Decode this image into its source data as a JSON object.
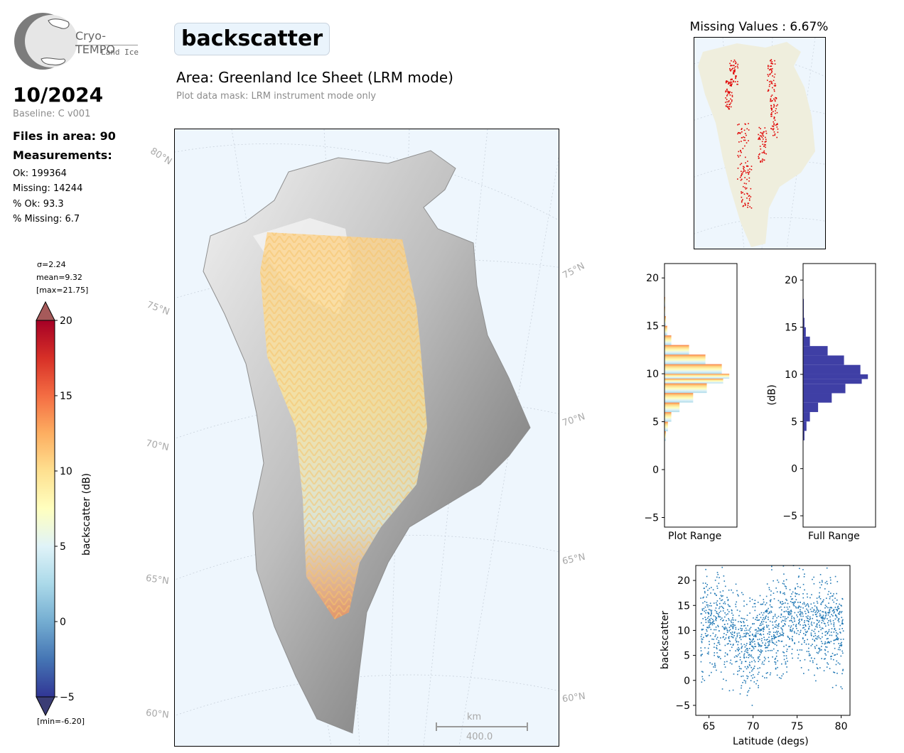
{
  "logo": {
    "name": "Cryo-TEMPO",
    "subtitle": "Land Ice"
  },
  "header": {
    "date": "10/2024",
    "baseline": "Baseline: C v001",
    "files_in_area": "Files in area: 90",
    "measurements_title": "Measurements:",
    "ok": "Ok: 199364",
    "missing": "Missing: 14244",
    "pct_ok": "% Ok: 93.3",
    "pct_missing": "% Missing: 6.7",
    "parameter": "backscatter",
    "area": "Area: Greenland Ice Sheet (LRM mode)",
    "mask": "Plot data mask: LRM instrument mode only"
  },
  "colorbar": {
    "label": "backscatter (dB)",
    "stats": {
      "sigma": "σ=2.24",
      "mean": "mean=9.32",
      "max": "[max=21.75]",
      "min": "[min=-6.20]"
    },
    "range": [
      -5,
      20
    ],
    "ticks": [
      "20",
      "15",
      "10",
      "5",
      "0",
      "−5"
    ],
    "colors": [
      "#313695",
      "#4575b4",
      "#74add1",
      "#abd9e9",
      "#e0f3f8",
      "#ffffbf",
      "#fee090",
      "#fdae61",
      "#f46d43",
      "#d73027",
      "#a50026"
    ]
  },
  "map": {
    "lat_labels_left": [
      "80°N",
      "75°N",
      "70°N",
      "65°N",
      "60°N"
    ],
    "lat_labels_right": [
      "75°N",
      "70°N",
      "65°N",
      "60°N"
    ],
    "scalebar_unit": "km",
    "scalebar_value": "400.0",
    "ocean_color": "#eef6fd"
  },
  "missing_map": {
    "title": "Missing Values : 6.67%",
    "land_color": "#efeedd",
    "point_color": "#e00000"
  },
  "chart_data": [
    {
      "type": "histogram",
      "xlabel": "Plot Range",
      "ylim": [
        -6,
        21.5
      ],
      "yticks": [
        "20",
        "15",
        "10",
        "5",
        "0",
        "−5"
      ],
      "bins": [
        {
          "y": 3,
          "count": 0.02
        },
        {
          "y": 4,
          "count": 0.05
        },
        {
          "y": 5,
          "count": 0.1
        },
        {
          "y": 6,
          "count": 0.22
        },
        {
          "y": 7,
          "count": 0.42
        },
        {
          "y": 8,
          "count": 0.62
        },
        {
          "y": 9,
          "count": 0.86
        },
        {
          "y": 9.5,
          "count": 0.95
        },
        {
          "y": 10,
          "count": 0.84
        },
        {
          "y": 11,
          "count": 0.6
        },
        {
          "y": 12,
          "count": 0.36
        },
        {
          "y": 13,
          "count": 0.1
        },
        {
          "y": 14,
          "count": 0.04
        },
        {
          "y": 15,
          "count": 0.02
        },
        {
          "y": 16,
          "count": 0.01
        },
        {
          "y": 17,
          "count": 0.01
        }
      ]
    },
    {
      "type": "histogram",
      "xlabel": "Full Range",
      "ylabel": "(dB)",
      "ylim": [
        -6.2,
        21.75
      ],
      "yticks": [
        "20",
        "15",
        "10",
        "5",
        "0",
        "−5"
      ],
      "color": "#3f3fa5",
      "bins": [
        {
          "y": 3,
          "count": 0.02
        },
        {
          "y": 4,
          "count": 0.05
        },
        {
          "y": 5,
          "count": 0.1
        },
        {
          "y": 6,
          "count": 0.22
        },
        {
          "y": 7,
          "count": 0.42
        },
        {
          "y": 8,
          "count": 0.62
        },
        {
          "y": 9,
          "count": 0.86
        },
        {
          "y": 9.5,
          "count": 0.95
        },
        {
          "y": 10,
          "count": 0.84
        },
        {
          "y": 11,
          "count": 0.6
        },
        {
          "y": 12,
          "count": 0.36
        },
        {
          "y": 13,
          "count": 0.1
        },
        {
          "y": 14,
          "count": 0.04
        },
        {
          "y": 15,
          "count": 0.02
        },
        {
          "y": 16,
          "count": 0.01
        },
        {
          "y": 17,
          "count": 0.01
        }
      ]
    },
    {
      "type": "scatter",
      "xlabel": "Latitude (degs)",
      "ylabel": "backscatter",
      "xlim": [
        63.5,
        81
      ],
      "ylim": [
        -7,
        23
      ],
      "xticks": [
        "65",
        "70",
        "75",
        "80"
      ],
      "yticks": [
        "20",
        "15",
        "10",
        "5",
        "0",
        "−5"
      ],
      "color": "#1f77b4",
      "profile": [
        {
          "x": 64,
          "y": 10
        },
        {
          "x": 65,
          "y": 12
        },
        {
          "x": 66,
          "y": 12
        },
        {
          "x": 67,
          "y": 10
        },
        {
          "x": 68,
          "y": 9
        },
        {
          "x": 69,
          "y": 6
        },
        {
          "x": 70,
          "y": 7
        },
        {
          "x": 71,
          "y": 9
        },
        {
          "x": 72,
          "y": 11
        },
        {
          "x": 73,
          "y": 10
        },
        {
          "x": 74,
          "y": 13
        },
        {
          "x": 75,
          "y": 13
        },
        {
          "x": 76,
          "y": 12
        },
        {
          "x": 77,
          "y": 11
        },
        {
          "x": 78,
          "y": 12
        },
        {
          "x": 79,
          "y": 11
        },
        {
          "x": 80,
          "y": 10
        }
      ]
    }
  ]
}
